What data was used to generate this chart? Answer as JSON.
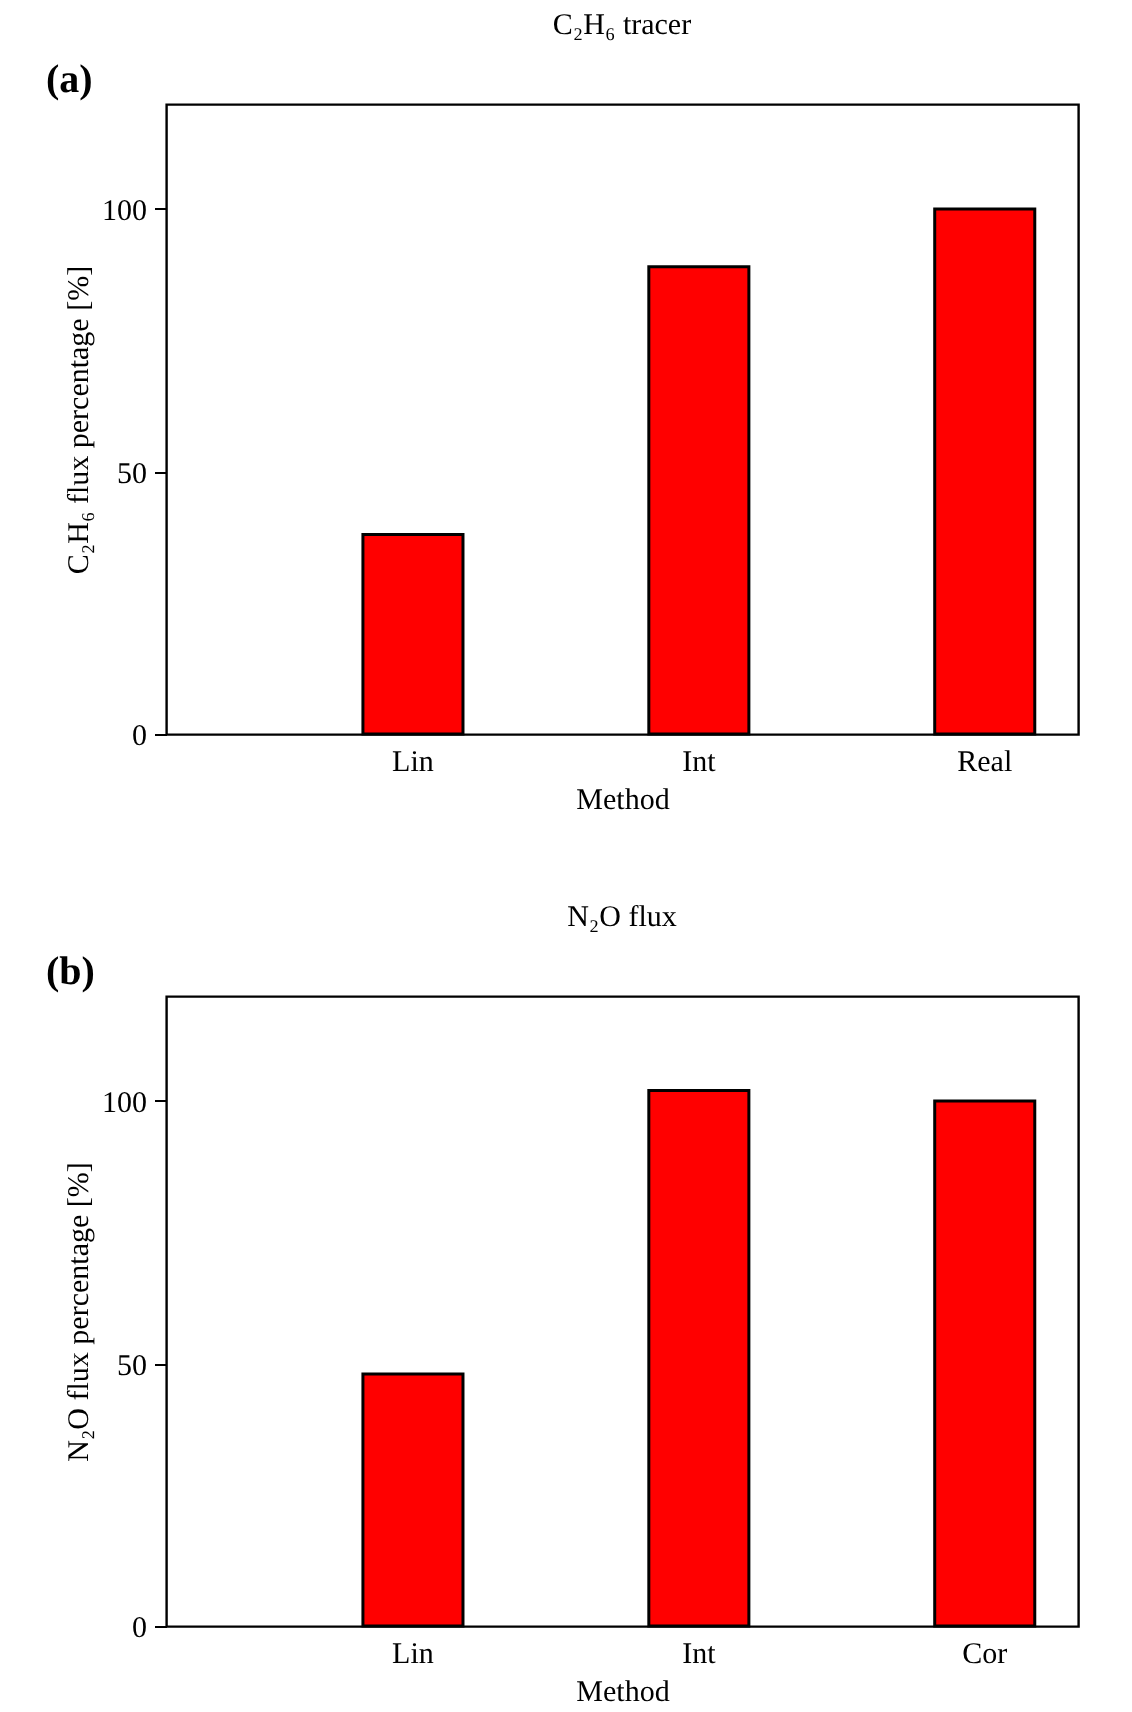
{
  "chart_data": [
    {
      "type": "bar",
      "title": "C₂H₆ tracer",
      "xlabel": "Method",
      "ylabel": "C₂H₆ flux percentage [%]",
      "annotations": [
        "(a)"
      ],
      "categories": [
        "Lin",
        "Int",
        "Real"
      ],
      "values": [
        38,
        89,
        100
      ],
      "color": "#ff0000",
      "ylim": [
        0,
        120
      ],
      "yticks": [
        0,
        50,
        100
      ],
      "grid": false
    },
    {
      "type": "bar",
      "title": "N₂O flux",
      "xlabel": "Method",
      "ylabel": "N₂O flux percentage [%]",
      "annotations": [
        "(b)"
      ],
      "categories": [
        "Lin",
        "Int",
        "Cor"
      ],
      "values": [
        48,
        102,
        100
      ],
      "color": "#ff0000",
      "ylim": [
        0,
        120
      ],
      "yticks": [
        0,
        50,
        100
      ],
      "grid": false
    }
  ]
}
